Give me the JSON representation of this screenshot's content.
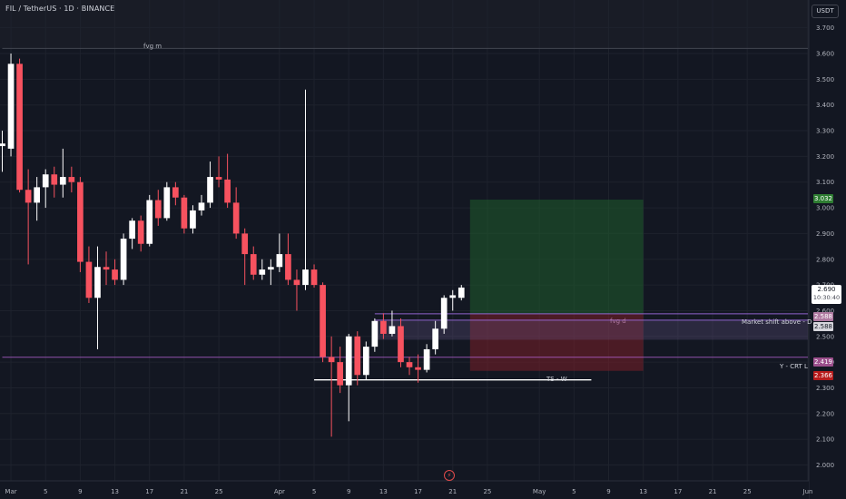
{
  "header": {
    "title": "FIL / TetherUS · 1D · BINANCE",
    "currency": "USDT"
  },
  "price_tags": {
    "current_price": "2.690",
    "countdown": "10:30:40",
    "take_profit": "3.032",
    "fvg_top": "2.588",
    "fvg_bottom": "2.588",
    "crt": "2.419",
    "stop": "2.366"
  },
  "annotations": {
    "fvg_m": "fvg m",
    "fvg_d": "fvg d",
    "market_shift": "Market shift above - D",
    "crt_label": "Y - CRT L",
    "ts_label": "TS - W"
  },
  "colors": {
    "background": "#131722",
    "bull": "#ffffff",
    "bear": "#f7525f",
    "grid": "#1e222d",
    "fvg_line": "#9c6ade",
    "target_zone": "#1f5d2b",
    "stop_zone": "#7a1f28",
    "tp_tag": "#2e7d32",
    "stop_tag": "#b71c1c",
    "crt_tag": "#9c4f8c",
    "fvg_tag": "#b07aa1"
  },
  "chart_data": {
    "type": "candlestick",
    "title": "FIL / TetherUS · 1D · BINANCE",
    "xlabel": "",
    "ylabel": "",
    "ylim": [
      1.97,
      3.72
    ],
    "y_ticks": [
      2.0,
      2.1,
      2.2,
      2.3,
      2.4,
      2.5,
      2.6,
      2.7,
      2.8,
      2.9,
      3.0,
      3.1,
      3.2,
      3.3,
      3.4,
      3.5,
      3.6,
      3.7
    ],
    "y_tick_labels": [
      "2.000",
      "2.100",
      "2.200",
      "2.300",
      "2.400",
      "2.500",
      "2.600",
      "2.700",
      "2.800",
      "2.900",
      "3.000",
      "3.100",
      "3.200",
      "3.300",
      "3.400",
      "3.500",
      "3.600",
      "3.700"
    ],
    "x_start": "2025-02-28",
    "x_end": "2025-06-01",
    "x_ticks": [
      {
        "date": "2025-03-01",
        "label": "Mar"
      },
      {
        "date": "2025-03-05",
        "label": "5"
      },
      {
        "date": "2025-03-09",
        "label": "9"
      },
      {
        "date": "2025-03-13",
        "label": "13"
      },
      {
        "date": "2025-03-17",
        "label": "17"
      },
      {
        "date": "2025-03-21",
        "label": "21"
      },
      {
        "date": "2025-03-25",
        "label": "25"
      },
      {
        "date": "2025-04-01",
        "label": "Apr"
      },
      {
        "date": "2025-04-05",
        "label": "5"
      },
      {
        "date": "2025-04-09",
        "label": "9"
      },
      {
        "date": "2025-04-13",
        "label": "13"
      },
      {
        "date": "2025-04-17",
        "label": "17"
      },
      {
        "date": "2025-04-21",
        "label": "21"
      },
      {
        "date": "2025-04-25",
        "label": "25"
      },
      {
        "date": "2025-05-01",
        "label": "May"
      },
      {
        "date": "2025-05-05",
        "label": "5"
      },
      {
        "date": "2025-05-09",
        "label": "9"
      },
      {
        "date": "2025-05-13",
        "label": "13"
      },
      {
        "date": "2025-05-17",
        "label": "17"
      },
      {
        "date": "2025-05-21",
        "label": "21"
      },
      {
        "date": "2025-05-25",
        "label": "25"
      },
      {
        "date": "2025-06-01",
        "label": "Jun"
      }
    ],
    "candles": [
      {
        "date": "2025-02-28",
        "o": 3.24,
        "h": 3.3,
        "l": 3.14,
        "c": 3.25
      },
      {
        "date": "2025-03-01",
        "o": 3.23,
        "h": 3.6,
        "l": 3.2,
        "c": 3.56
      },
      {
        "date": "2025-03-02",
        "o": 3.56,
        "h": 3.58,
        "l": 3.06,
        "c": 3.07
      },
      {
        "date": "2025-03-03",
        "o": 3.07,
        "h": 3.15,
        "l": 2.78,
        "c": 3.02
      },
      {
        "date": "2025-03-04",
        "o": 3.02,
        "h": 3.12,
        "l": 2.95,
        "c": 3.08
      },
      {
        "date": "2025-03-05",
        "o": 3.08,
        "h": 3.15,
        "l": 3.0,
        "c": 3.13
      },
      {
        "date": "2025-03-06",
        "o": 3.13,
        "h": 3.16,
        "l": 3.04,
        "c": 3.09
      },
      {
        "date": "2025-03-07",
        "o": 3.09,
        "h": 3.23,
        "l": 3.04,
        "c": 3.12
      },
      {
        "date": "2025-03-08",
        "o": 3.12,
        "h": 3.16,
        "l": 3.06,
        "c": 3.1
      },
      {
        "date": "2025-03-09",
        "o": 3.1,
        "h": 3.12,
        "l": 2.75,
        "c": 2.79
      },
      {
        "date": "2025-03-10",
        "o": 2.79,
        "h": 2.85,
        "l": 2.63,
        "c": 2.65
      },
      {
        "date": "2025-03-11",
        "o": 2.65,
        "h": 2.85,
        "l": 2.45,
        "c": 2.77
      },
      {
        "date": "2025-03-12",
        "o": 2.77,
        "h": 2.83,
        "l": 2.7,
        "c": 2.76
      },
      {
        "date": "2025-03-13",
        "o": 2.76,
        "h": 2.8,
        "l": 2.7,
        "c": 2.72
      },
      {
        "date": "2025-03-14",
        "o": 2.72,
        "h": 2.9,
        "l": 2.7,
        "c": 2.88
      },
      {
        "date": "2025-03-15",
        "o": 2.88,
        "h": 2.96,
        "l": 2.84,
        "c": 2.95
      },
      {
        "date": "2025-03-16",
        "o": 2.95,
        "h": 2.97,
        "l": 2.83,
        "c": 2.86
      },
      {
        "date": "2025-03-17",
        "o": 2.86,
        "h": 3.05,
        "l": 2.85,
        "c": 3.03
      },
      {
        "date": "2025-03-18",
        "o": 3.03,
        "h": 3.07,
        "l": 2.93,
        "c": 2.96
      },
      {
        "date": "2025-03-19",
        "o": 2.96,
        "h": 3.1,
        "l": 2.95,
        "c": 3.08
      },
      {
        "date": "2025-03-20",
        "o": 3.08,
        "h": 3.1,
        "l": 3.01,
        "c": 3.04
      },
      {
        "date": "2025-03-21",
        "o": 3.04,
        "h": 3.05,
        "l": 2.9,
        "c": 2.92
      },
      {
        "date": "2025-03-22",
        "o": 2.92,
        "h": 3.01,
        "l": 2.9,
        "c": 2.99
      },
      {
        "date": "2025-03-23",
        "o": 2.99,
        "h": 3.05,
        "l": 2.97,
        "c": 3.02
      },
      {
        "date": "2025-03-24",
        "o": 3.02,
        "h": 3.18,
        "l": 3.0,
        "c": 3.12
      },
      {
        "date": "2025-03-25",
        "o": 3.12,
        "h": 3.2,
        "l": 3.08,
        "c": 3.11
      },
      {
        "date": "2025-03-26",
        "o": 3.11,
        "h": 3.21,
        "l": 3.0,
        "c": 3.02
      },
      {
        "date": "2025-03-27",
        "o": 3.02,
        "h": 3.08,
        "l": 2.88,
        "c": 2.9
      },
      {
        "date": "2025-03-28",
        "o": 2.9,
        "h": 2.92,
        "l": 2.7,
        "c": 2.82
      },
      {
        "date": "2025-03-29",
        "o": 2.82,
        "h": 2.85,
        "l": 2.72,
        "c": 2.74
      },
      {
        "date": "2025-03-30",
        "o": 2.74,
        "h": 2.8,
        "l": 2.72,
        "c": 2.76
      },
      {
        "date": "2025-03-31",
        "o": 2.76,
        "h": 2.8,
        "l": 2.7,
        "c": 2.77
      },
      {
        "date": "2025-04-01",
        "o": 2.77,
        "h": 2.9,
        "l": 2.75,
        "c": 2.82
      },
      {
        "date": "2025-04-02",
        "o": 2.82,
        "h": 2.9,
        "l": 2.7,
        "c": 2.72
      },
      {
        "date": "2025-04-03",
        "o": 2.72,
        "h": 2.76,
        "l": 2.6,
        "c": 2.7
      },
      {
        "date": "2025-04-04",
        "o": 2.7,
        "h": 3.46,
        "l": 2.68,
        "c": 2.76
      },
      {
        "date": "2025-04-05",
        "o": 2.76,
        "h": 2.78,
        "l": 2.69,
        "c": 2.7
      },
      {
        "date": "2025-04-06",
        "o": 2.7,
        "h": 2.71,
        "l": 2.4,
        "c": 2.42
      },
      {
        "date": "2025-04-07",
        "o": 2.42,
        "h": 2.5,
        "l": 2.11,
        "c": 2.4
      },
      {
        "date": "2025-04-08",
        "o": 2.4,
        "h": 2.46,
        "l": 2.28,
        "c": 2.31
      },
      {
        "date": "2025-04-09",
        "o": 2.31,
        "h": 2.51,
        "l": 2.17,
        "c": 2.5
      },
      {
        "date": "2025-04-10",
        "o": 2.5,
        "h": 2.52,
        "l": 2.31,
        "c": 2.35
      },
      {
        "date": "2025-04-11",
        "o": 2.35,
        "h": 2.48,
        "l": 2.33,
        "c": 2.46
      },
      {
        "date": "2025-04-12",
        "o": 2.46,
        "h": 2.57,
        "l": 2.44,
        "c": 2.56
      },
      {
        "date": "2025-04-13",
        "o": 2.56,
        "h": 2.59,
        "l": 2.49,
        "c": 2.51
      },
      {
        "date": "2025-04-14",
        "o": 2.51,
        "h": 2.6,
        "l": 2.5,
        "c": 2.54
      },
      {
        "date": "2025-04-15",
        "o": 2.54,
        "h": 2.57,
        "l": 2.38,
        "c": 2.4
      },
      {
        "date": "2025-04-16",
        "o": 2.4,
        "h": 2.42,
        "l": 2.35,
        "c": 2.38
      },
      {
        "date": "2025-04-17",
        "o": 2.38,
        "h": 2.43,
        "l": 2.32,
        "c": 2.37
      },
      {
        "date": "2025-04-18",
        "o": 2.37,
        "h": 2.47,
        "l": 2.36,
        "c": 2.45
      },
      {
        "date": "2025-04-19",
        "o": 2.45,
        "h": 2.56,
        "l": 2.43,
        "c": 2.53
      },
      {
        "date": "2025-04-20",
        "o": 2.53,
        "h": 2.66,
        "l": 2.51,
        "c": 2.65
      },
      {
        "date": "2025-04-21",
        "o": 2.65,
        "h": 2.68,
        "l": 2.6,
        "c": 2.66
      },
      {
        "date": "2025-04-22",
        "o": 2.65,
        "h": 2.7,
        "l": 2.64,
        "c": 2.69
      }
    ],
    "zones": [
      {
        "name": "target",
        "from": "2025-04-23",
        "to": "2025-05-13",
        "top": 3.032,
        "bottom": 2.588
      },
      {
        "name": "stop",
        "from": "2025-04-23",
        "to": "2025-05-13",
        "top": 2.588,
        "bottom": 2.366
      }
    ],
    "levels": [
      {
        "name": "fvg-m-top",
        "price": 3.62,
        "from": "2025-02-28",
        "to": "2025-06-01"
      },
      {
        "name": "fvg-d",
        "price": 2.588,
        "from": "2025-04-12",
        "to": "2025-06-01"
      },
      {
        "name": "market-shift",
        "price": 2.563,
        "from": "2025-04-12",
        "to": "2025-06-01"
      },
      {
        "name": "crt",
        "price": 2.419,
        "from": "2025-02-28",
        "to": "2025-06-01"
      },
      {
        "name": "ts-w",
        "price": 2.331,
        "from": "2025-04-05",
        "to": "2025-05-07"
      }
    ]
  }
}
